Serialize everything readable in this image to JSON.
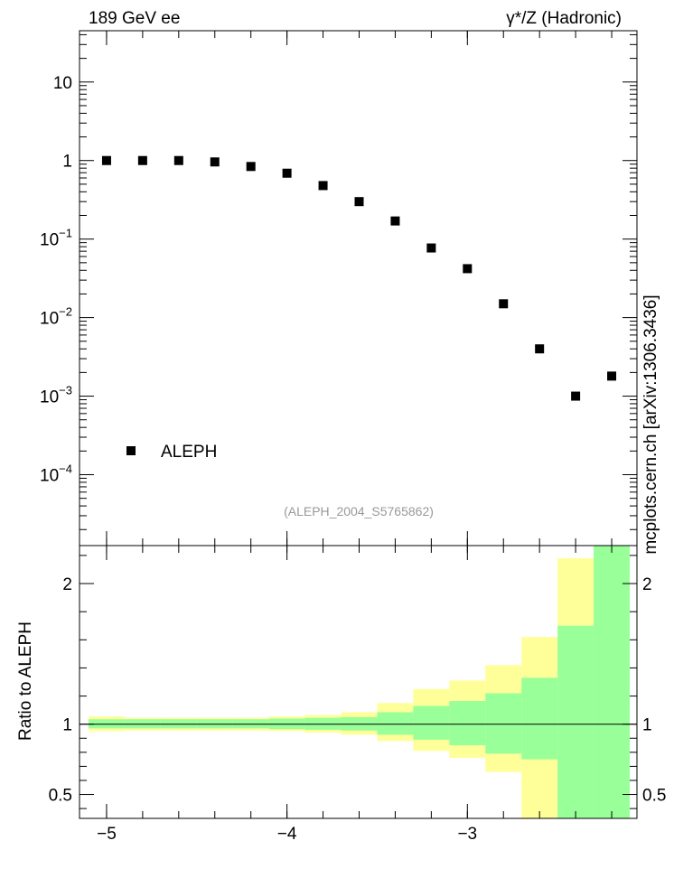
{
  "header": {
    "energy_label": "189 GeV ee",
    "process_label": "γ*/Z (Hadronic)"
  },
  "watermark": {
    "site": "mcplots.cern.ch [arXiv:1306.3436]",
    "analysis": "(ALEPH_2004_S5765862)"
  },
  "legend": {
    "label": "ALEPH",
    "position": "lower-left"
  },
  "colors": {
    "marker": "#000000",
    "band_outer": "#ffff99",
    "band_inner": "#99ff99",
    "frame": "#000000"
  },
  "chart_data": [
    {
      "type": "scatter",
      "yscale": "log",
      "xlim": [
        -5.15,
        -2.06
      ],
      "ylim": [
        1.25e-05,
        45
      ],
      "x_tick_labels": [
        "−5",
        "−4",
        "−3"
      ],
      "y_tick_labels": [
        {
          "base": "10",
          "exp": "−4"
        },
        {
          "base": "10",
          "exp": "−3"
        },
        {
          "base": "10",
          "exp": "−2"
        },
        {
          "base": "10",
          "exp": "−1"
        },
        {
          "base": "1",
          "exp": ""
        },
        {
          "base": "10",
          "exp": ""
        }
      ],
      "series": [
        {
          "name": "ALEPH",
          "x": [
            -5.0,
            -4.8,
            -4.6,
            -4.4,
            -4.2,
            -4.0,
            -3.8,
            -3.6,
            -3.4,
            -3.2,
            -3.0,
            -2.8,
            -2.6,
            -2.4,
            -2.2
          ],
          "y": [
            1.0,
            1.0,
            1.0,
            0.96,
            0.84,
            0.69,
            0.48,
            0.3,
            0.17,
            0.077,
            0.042,
            0.015,
            0.004,
            0.001,
            0.0018
          ]
        }
      ]
    },
    {
      "type": "area",
      "ylabel": "Ratio to ALEPH",
      "xlim": [
        -5.15,
        -2.06
      ],
      "ylim": [
        0.33,
        2.27
      ],
      "x_tick_labels": [
        "−5",
        "−4",
        "−3"
      ],
      "y_tick_labels": [
        "0.5",
        "1",
        "2"
      ],
      "bin_edges": [
        -5.1,
        -4.9,
        -4.7,
        -4.5,
        -4.3,
        -4.1,
        -3.9,
        -3.7,
        -3.5,
        -3.3,
        -3.1,
        -2.9,
        -2.7,
        -2.5,
        -2.3,
        -2.1
      ],
      "outer_band": {
        "low": [
          0.95,
          0.955,
          0.955,
          0.955,
          0.955,
          0.95,
          0.94,
          0.925,
          0.88,
          0.81,
          0.76,
          0.66,
          0.33,
          0.33,
          0.33
        ],
        "high": [
          1.055,
          1.045,
          1.045,
          1.045,
          1.045,
          1.055,
          1.065,
          1.085,
          1.15,
          1.25,
          1.31,
          1.42,
          1.62,
          2.18,
          2.27
        ]
      },
      "inner_band": {
        "low": [
          0.97,
          0.97,
          0.97,
          0.97,
          0.97,
          0.965,
          0.96,
          0.955,
          0.925,
          0.89,
          0.85,
          0.79,
          0.75,
          0.33,
          0.33
        ],
        "high": [
          1.035,
          1.035,
          1.035,
          1.035,
          1.035,
          1.04,
          1.045,
          1.05,
          1.085,
          1.13,
          1.165,
          1.22,
          1.33,
          1.7,
          2.27
        ]
      },
      "reference_line": 1
    }
  ]
}
